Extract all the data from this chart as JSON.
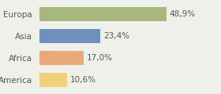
{
  "categories": [
    "Europa",
    "Asia",
    "Africa",
    "America"
  ],
  "values": [
    48.9,
    23.4,
    17.0,
    10.6
  ],
  "labels": [
    "48,9%",
    "23,4%",
    "17,0%",
    "10,6%"
  ],
  "bar_colors": [
    "#a8b87c",
    "#6f8fbf",
    "#e8a97a",
    "#f0d07a"
  ],
  "background_color": "#f0f0eb",
  "xlim": [
    0,
    68
  ],
  "bar_height": 0.65,
  "label_fontsize": 7.5,
  "category_fontsize": 7.5
}
